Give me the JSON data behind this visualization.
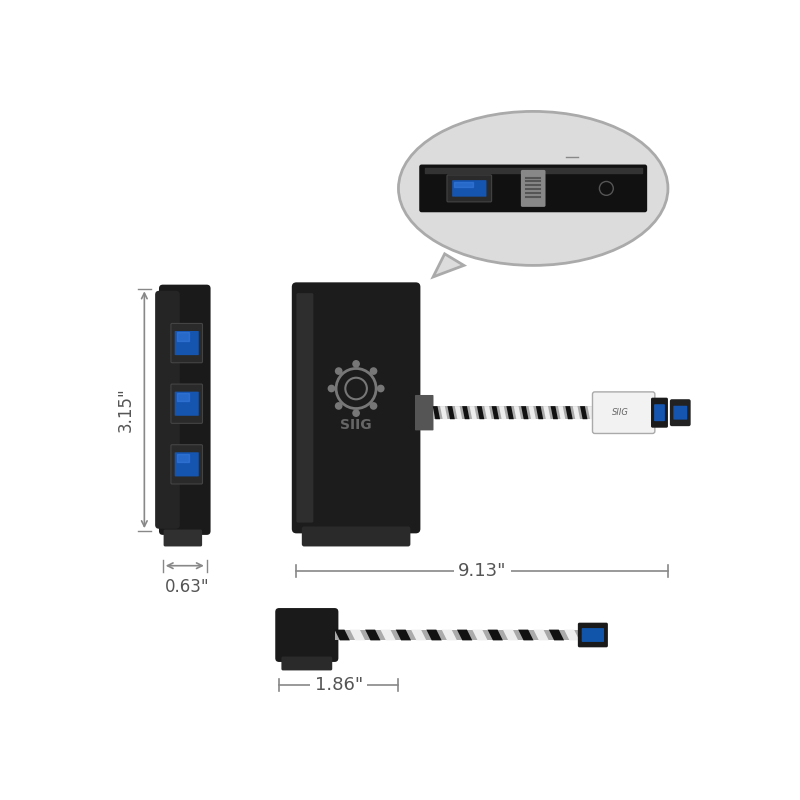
{
  "bg_color": "#ffffff",
  "dim_color": "#555555",
  "dim_line_color": "#888888",
  "blue_usb": "#1a5fb4",
  "blue_usb_mid": "#2060cc",
  "dim_315": "3.15\"",
  "dim_063": "0.63\"",
  "dim_913": "9.13\"",
  "dim_186": "1.86\""
}
